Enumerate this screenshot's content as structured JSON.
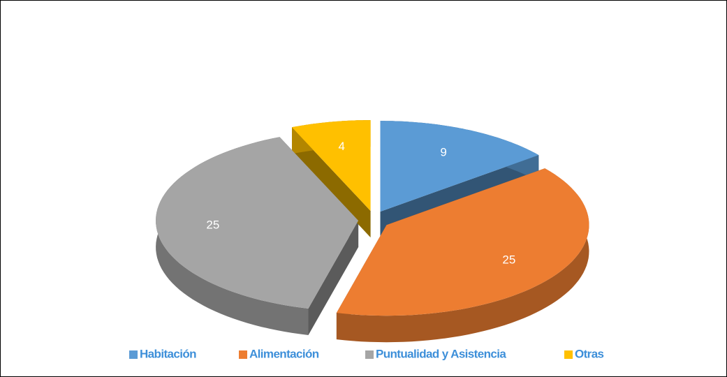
{
  "chart_data": {
    "type": "pie",
    "categories": [
      "Habitación",
      "Alimentación",
      "Puntualidad y Asistencia",
      "Otras"
    ],
    "values": [
      9,
      25,
      25,
      4
    ],
    "colors": [
      "#5b9bd5",
      "#ed7d31",
      "#a5a5a5",
      "#ffc000"
    ],
    "legend": "bottom"
  }
}
